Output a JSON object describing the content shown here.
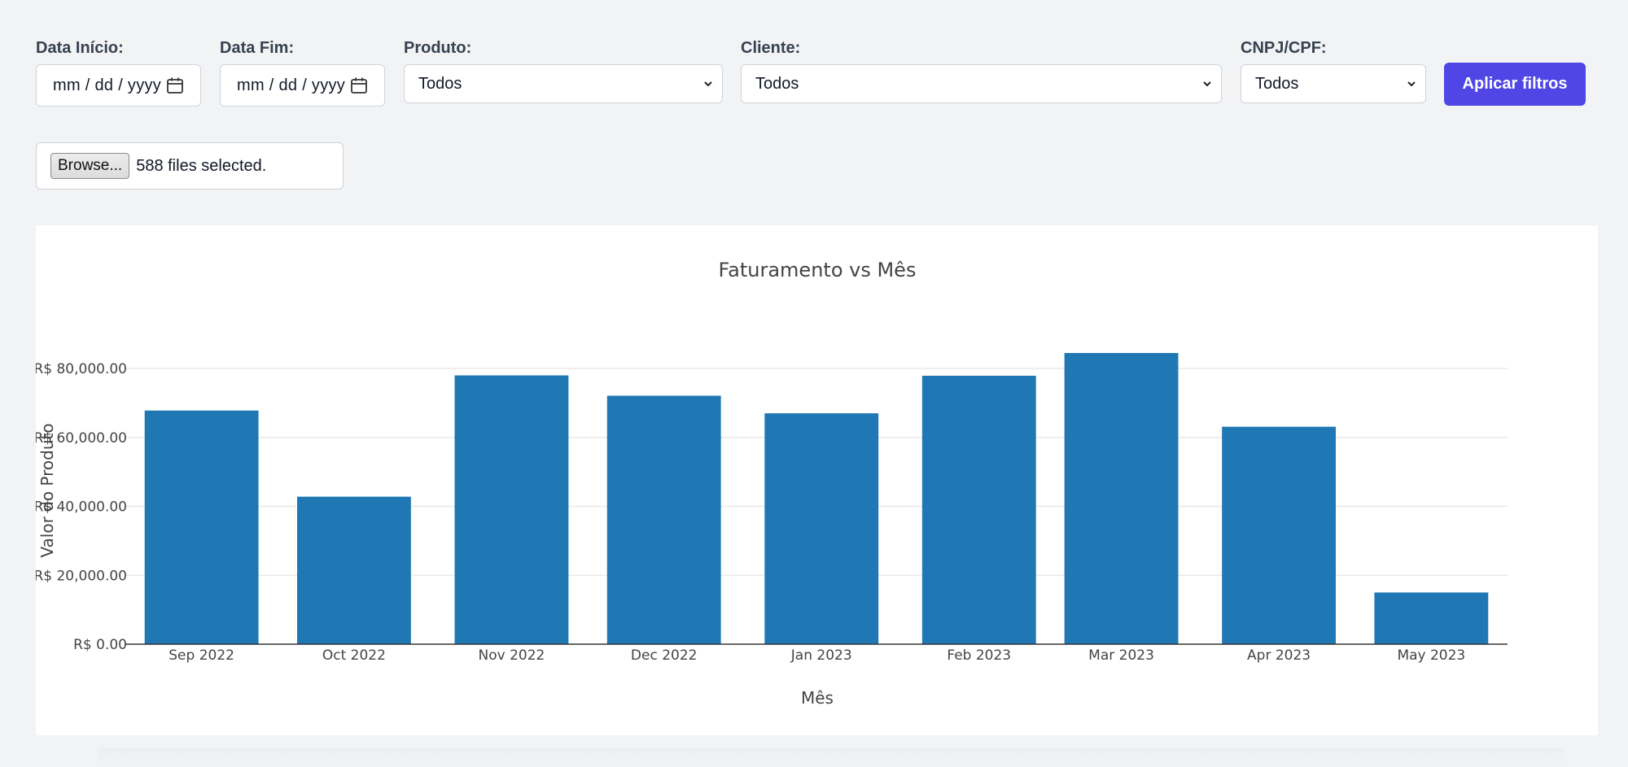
{
  "filters": {
    "start_date": {
      "label": "Data Início:",
      "value": "mm / dd / yyyy"
    },
    "end_date": {
      "label": "Data Fim:",
      "value": "mm / dd / yyyy"
    },
    "product": {
      "label": "Produto:",
      "value": "Todos"
    },
    "client": {
      "label": "Cliente:",
      "value": "Todos"
    },
    "cnpj": {
      "label": "CNPJ/CPF:",
      "value": "Todos"
    },
    "apply_label": "Aplicar filtros",
    "icons": {
      "calendar": "calendar-icon",
      "dropdown": "chevron-down-icon"
    }
  },
  "file_input": {
    "browse_label": "Browse...",
    "status": "588 files selected."
  },
  "colors": {
    "bar": "#1f77b4",
    "button": "#4f46e5",
    "background": "#f2f3f5"
  },
  "chart_data": {
    "type": "bar",
    "title": "Faturamento vs Mês",
    "xlabel": "Mês",
    "ylabel": "Valor do Produto",
    "categories": [
      "Sep 2022",
      "Oct 2022",
      "Nov 2022",
      "Dec 2022",
      "Jan 2023",
      "Feb 2023",
      "Mar 2023",
      "Apr 2023",
      "May 2023"
    ],
    "x_dates": [
      "2022-09-01",
      "2022-10-01",
      "2022-11-01",
      "2022-12-01",
      "2023-01-01",
      "2023-02-01",
      "2023-03-01",
      "2023-04-01",
      "2023-05-01"
    ],
    "values": [
      67800,
      42800,
      78000,
      72100,
      67000,
      77900,
      84500,
      63100,
      15000
    ],
    "ylim": [
      0,
      84500
    ],
    "yticks": [
      0,
      20000,
      40000,
      60000,
      80000
    ],
    "ytick_labels": [
      "R$ 0.00",
      "R$ 20,000.00",
      "R$ 40,000.00",
      "R$ 60,000.00",
      "R$ 80,000.00"
    ],
    "grid": true,
    "legend": false
  }
}
